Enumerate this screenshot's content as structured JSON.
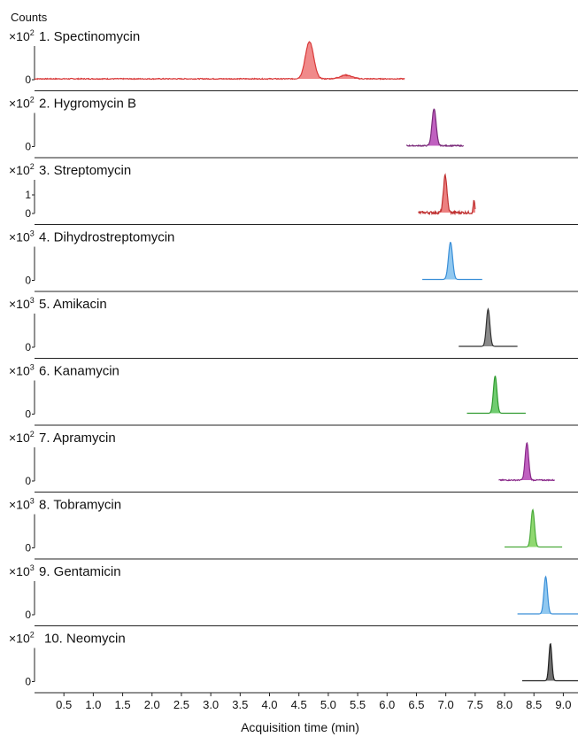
{
  "chart_data": {
    "type": "line",
    "title": "",
    "ylabel": "Counts",
    "xlabel": "Acquisition time (min)",
    "xlim": [
      0.0,
      9.25
    ],
    "x_ticks": [
      "0.5",
      "1.0",
      "1.5",
      "2.0",
      "2.5",
      "3.0",
      "3.5",
      "4.0",
      "4.5",
      "5.0",
      "5.5",
      "6.0",
      "6.5",
      "7.0",
      "7.5",
      "8.0",
      "8.5",
      "9.0"
    ],
    "grid": false,
    "legend": "none",
    "panels": [
      {
        "label": "1. Spectinomycin",
        "scale": "×10",
        "exp": "2",
        "ticks": [
          "0"
        ],
        "color": "#d93a3a",
        "fill": "#f08a8a",
        "trace": {
          "x": [
            0.0,
            6.3
          ],
          "noise": 0.025
        },
        "peaks": [
          {
            "rt": 4.68,
            "height": 1.0,
            "width": 0.07
          },
          {
            "rt": 5.3,
            "height": 0.1,
            "width": 0.1
          }
        ]
      },
      {
        "label": "2. Hygromycin B",
        "scale": "×10",
        "exp": "2",
        "ticks": [
          "0"
        ],
        "color": "#7a2a7a",
        "fill": "#c060c0",
        "trace": {
          "x": [
            6.33,
            7.3
          ],
          "noise": 0.03
        },
        "peaks": [
          {
            "rt": 6.8,
            "height": 1.0,
            "width": 0.035
          }
        ]
      },
      {
        "label": "3. Streptomycin",
        "scale": "×10",
        "exp": "2",
        "ticks": [
          "1",
          "0"
        ],
        "color": "#c03030",
        "fill": "#ec8080",
        "trace": {
          "x": [
            6.53,
            7.5
          ],
          "noise": 0.07
        },
        "peaks": [
          {
            "rt": 6.99,
            "height": 1.0,
            "width": 0.03
          },
          {
            "rt": 7.48,
            "height": 0.35,
            "width": 0.012
          }
        ]
      },
      {
        "label": "4. Dihydrostreptomycin",
        "scale": "×10",
        "exp": "3",
        "ticks": [
          "0"
        ],
        "color": "#3a8fd8",
        "fill": "#90c8f0",
        "trace": {
          "x": [
            6.6,
            7.62
          ],
          "noise": 0.0
        },
        "peaks": [
          {
            "rt": 7.08,
            "height": 1.0,
            "width": 0.035
          }
        ]
      },
      {
        "label": "5. Amikacin",
        "scale": "×10",
        "exp": "3",
        "ticks": [
          "0"
        ],
        "color": "#333333",
        "fill": "#8a8a8a",
        "trace": {
          "x": [
            7.22,
            8.22
          ],
          "noise": 0.0
        },
        "peaks": [
          {
            "rt": 7.72,
            "height": 1.0,
            "width": 0.03
          }
        ]
      },
      {
        "label": "6. Kanamycin",
        "scale": "×10",
        "exp": "3",
        "ticks": [
          "0"
        ],
        "color": "#2f9a2f",
        "fill": "#70cc70",
        "trace": {
          "x": [
            7.36,
            8.36
          ],
          "noise": 0.0
        },
        "peaks": [
          {
            "rt": 7.84,
            "height": 1.0,
            "width": 0.03
          }
        ]
      },
      {
        "label": "7. Apramycin",
        "scale": "×10",
        "exp": "2",
        "ticks": [
          "0"
        ],
        "color": "#8a2a8a",
        "fill": "#c060c0",
        "trace": {
          "x": [
            7.9,
            8.85
          ],
          "noise": 0.03
        },
        "peaks": [
          {
            "rt": 8.38,
            "height": 1.0,
            "width": 0.03
          }
        ]
      },
      {
        "label": "8. Tobramycin",
        "scale": "×10",
        "exp": "3",
        "ticks": [
          "0"
        ],
        "color": "#4aaa3a",
        "fill": "#90d870",
        "trace": {
          "x": [
            8.0,
            8.98
          ],
          "noise": 0.0
        },
        "peaks": [
          {
            "rt": 8.48,
            "height": 1.0,
            "width": 0.03
          }
        ]
      },
      {
        "label": "9. Gentamicin",
        "scale": "×10",
        "exp": "3",
        "ticks": [
          "0"
        ],
        "color": "#3a8fd8",
        "fill": "#90c8f0",
        "trace": {
          "x": [
            8.22,
            9.25
          ],
          "noise": 0.0
        },
        "peaks": [
          {
            "rt": 8.7,
            "height": 1.0,
            "width": 0.03
          }
        ]
      },
      {
        "label": "10. Neomycin",
        "scale": "×10",
        "exp": "2",
        "ticks": [
          "0"
        ],
        "color": "#222222",
        "fill": "#707070",
        "trace": {
          "x": [
            8.3,
            9.25
          ],
          "noise": 0.0
        },
        "peaks": [
          {
            "rt": 8.78,
            "height": 1.0,
            "width": 0.025
          }
        ]
      }
    ]
  }
}
